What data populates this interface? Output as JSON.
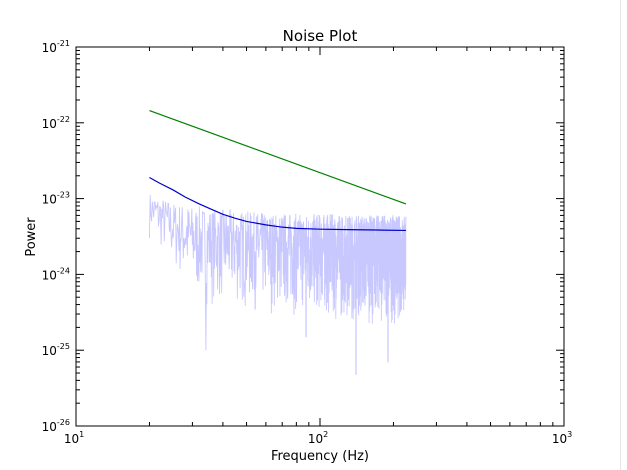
{
  "chart_data": {
    "type": "line",
    "title": "Noise Plot",
    "xlabel": "Frequency (Hz)",
    "ylabel": "Power",
    "xscale": "log",
    "yscale": "log",
    "xlim": [
      10,
      1000
    ],
    "ylim": [
      1e-26,
      1e-21
    ],
    "grid": false,
    "x_ticks": [
      {
        "value": 10,
        "base": "10",
        "exp": "1"
      },
      {
        "value": 100,
        "base": "10",
        "exp": "2"
      },
      {
        "value": 1000,
        "base": "10",
        "exp": "3"
      }
    ],
    "y_ticks": [
      {
        "value": 1e-26,
        "base": "10",
        "exp": "-26"
      },
      {
        "value": 1e-25,
        "base": "10",
        "exp": "-25"
      },
      {
        "value": 1e-24,
        "base": "10",
        "exp": "-24"
      },
      {
        "value": 1e-23,
        "base": "10",
        "exp": "-23"
      },
      {
        "value": 1e-22,
        "base": "10",
        "exp": "-22"
      },
      {
        "value": 1e-21,
        "base": "10",
        "exp": "-21"
      }
    ],
    "series": [
      {
        "color": "#c8c8ff",
        "style": "noisy",
        "x_range": [
          20,
          225
        ],
        "upper_envelope": [
          [
            20,
            1.2e-23
          ],
          [
            25,
            9e-24
          ],
          [
            35,
            7.5e-24
          ],
          [
            60,
            6.5e-24
          ],
          [
            225,
            6e-24
          ]
        ],
        "lower_envelope": [
          [
            20,
            3e-24
          ],
          [
            30,
            4e-25
          ],
          [
            50,
            3e-25
          ],
          [
            100,
            2.5e-25
          ],
          [
            225,
            2e-25
          ]
        ],
        "spike_extremes": [
          [
            20.5,
            3.5e-23
          ],
          [
            34,
            1e-25
          ],
          [
            88,
            1.5e-25
          ],
          [
            140,
            4.8e-26
          ],
          [
            190,
            7e-26
          ]
        ]
      },
      {
        "color": "#0000cc",
        "x": [
          20,
          22,
          25,
          28,
          32,
          36,
          40,
          45,
          50,
          60,
          70,
          80,
          100,
          130,
          170,
          225
        ],
        "y": [
          1.9e-23,
          1.6e-23,
          1.3e-23,
          1.05e-23,
          8.5e-24,
          7.2e-24,
          6.2e-24,
          5.5e-24,
          5e-24,
          4.5e-24,
          4.2e-24,
          4.05e-24,
          3.95e-24,
          3.9e-24,
          3.85e-24,
          3.8e-24
        ]
      },
      {
        "color": "#008000",
        "x": [
          20,
          225
        ],
        "y": [
          1.45e-22,
          8.5e-24
        ]
      }
    ]
  }
}
